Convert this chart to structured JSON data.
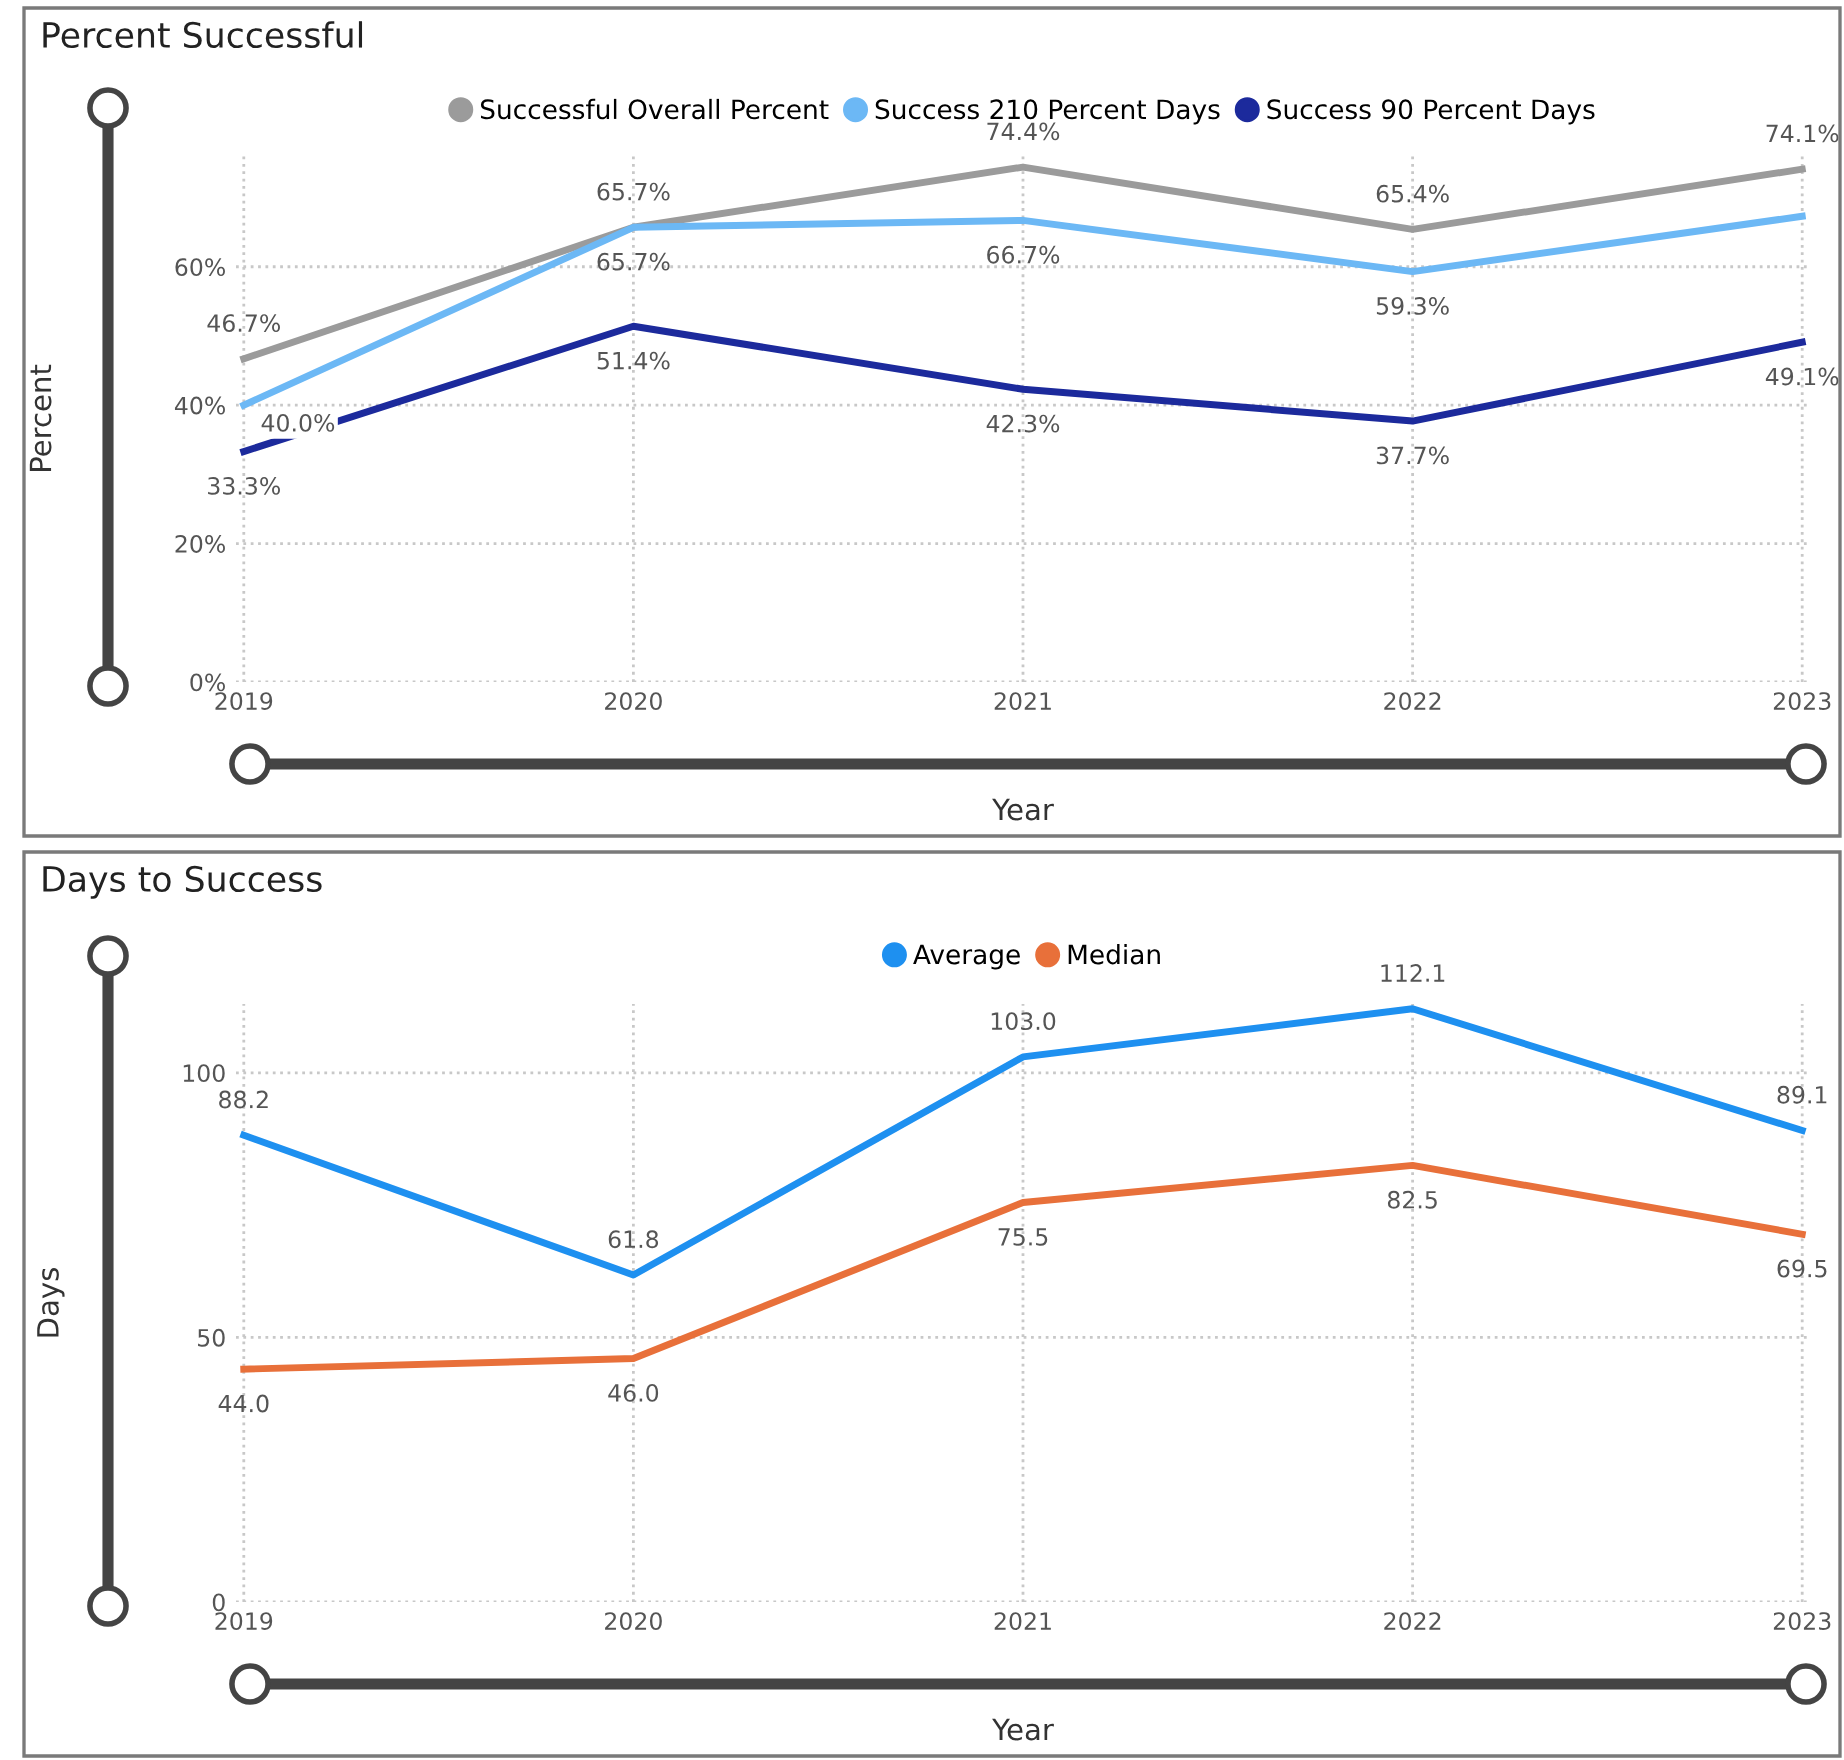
{
  "chart_data": [
    {
      "type": "line",
      "title": "Percent Successful",
      "xlabel": "Year",
      "ylabel": "Percent",
      "categories": [
        "2019",
        "2020",
        "2021",
        "2022",
        "2023"
      ],
      "series": [
        {
          "name": "Successful Overall Percent",
          "color": "#9b9b9b",
          "values": [
            46.7,
            65.7,
            74.4,
            65.4,
            74.1
          ],
          "value_labels": [
            "46.7%",
            "65.7%",
            "74.4%",
            "65.4%",
            "74.1%"
          ]
        },
        {
          "name": "Success 210 Percent Days",
          "color": "#6cb8f5",
          "values": [
            40.0,
            65.7,
            66.7,
            59.3,
            67.3
          ],
          "value_labels": [
            "40.0%",
            "65.7%",
            "66.7%",
            "59.3%",
            null
          ]
        },
        {
          "name": "Success 90 Percent Days",
          "color": "#1c2a9c",
          "values": [
            33.3,
            51.4,
            42.3,
            37.7,
            49.1
          ],
          "value_labels": [
            "33.3%",
            "51.4%",
            "42.3%",
            "37.7%",
            "49.1%"
          ]
        }
      ],
      "ylim": [
        0,
        76
      ],
      "yticks": [
        {
          "value": 0,
          "label": "0%"
        },
        {
          "value": 20,
          "label": "20%"
        },
        {
          "value": 40,
          "label": "40%"
        },
        {
          "value": 60,
          "label": "60%"
        }
      ],
      "grid": true,
      "legend": "top",
      "marker": "none",
      "line_style": "solid"
    },
    {
      "type": "line",
      "title": "Days to Success",
      "xlabel": "Year",
      "ylabel": "Days",
      "categories": [
        "2019",
        "2020",
        "2021",
        "2022",
        "2023"
      ],
      "series": [
        {
          "name": "Average",
          "color": "#1e90f0",
          "values": [
            88.2,
            61.8,
            103.0,
            112.1,
            89.1
          ],
          "value_labels": [
            "88.2",
            "61.8",
            "103.0",
            "112.1",
            "89.1"
          ]
        },
        {
          "name": "Median",
          "color": "#e8703a",
          "values": [
            44.0,
            46.0,
            75.5,
            82.5,
            69.5
          ],
          "value_labels": [
            "44.0",
            "46.0",
            "75.5",
            "82.5",
            "69.5"
          ]
        }
      ],
      "ylim": [
        0,
        113
      ],
      "yticks": [
        0,
        50,
        100
      ],
      "grid": true,
      "legend": "top",
      "marker": "none",
      "line_style": "solid"
    }
  ]
}
